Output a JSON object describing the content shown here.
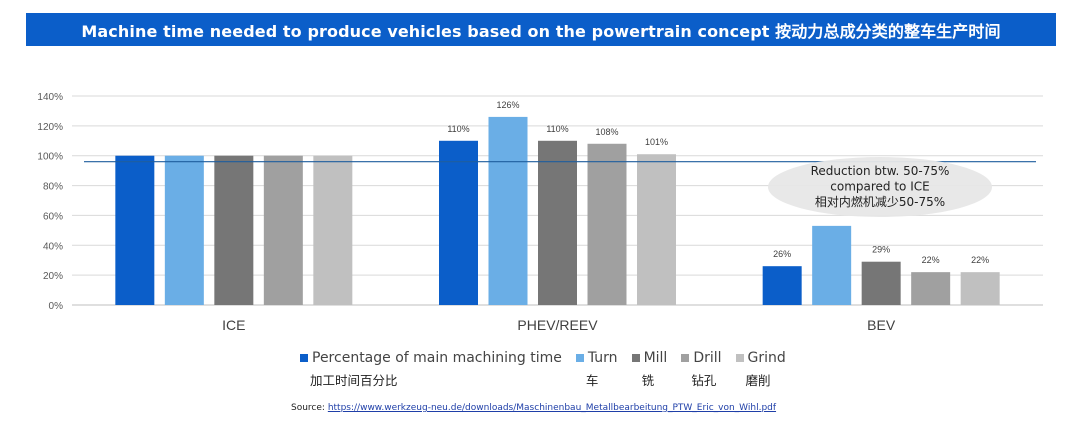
{
  "header": {
    "title": "Machine time needed to produce vehicles based on the powertrain concept 按动力总成分类的整车生产时间"
  },
  "chart_data": {
    "type": "bar",
    "categories": [
      "ICE",
      "PHEV/REEV",
      "BEV"
    ],
    "series": [
      {
        "name": "Percentage of main machining time",
        "name_cn": "加工时间百分比",
        "color": "#0b5ec9",
        "values": [
          100,
          110,
          26
        ],
        "labels": [
          "",
          "110%",
          "26%"
        ]
      },
      {
        "name": "Turn",
        "name_cn": "车",
        "color": "#6aaee6",
        "values": [
          100,
          126,
          53
        ],
        "labels": [
          "",
          "126%",
          ""
        ]
      },
      {
        "name": "Mill",
        "name_cn": "铣",
        "color": "#767676",
        "values": [
          100,
          110,
          29
        ],
        "labels": [
          "",
          "110%",
          "29%"
        ]
      },
      {
        "name": "Drill",
        "name_cn": "钻孔",
        "color": "#a0a0a0",
        "values": [
          100,
          108,
          22
        ],
        "labels": [
          "",
          "108%",
          "22%"
        ]
      },
      {
        "name": "Grind",
        "name_cn": "磨削",
        "color": "#c0c0c0",
        "values": [
          100,
          101,
          22
        ],
        "labels": [
          "",
          "101%",
          "22%"
        ]
      }
    ],
    "yticks": [
      "0%",
      "20%",
      "40%",
      "60%",
      "80%",
      "100%",
      "120%",
      "140%"
    ],
    "ylim": [
      0,
      140
    ],
    "reference_line": {
      "value": 96,
      "color": "#1f5e9e"
    },
    "annotation": {
      "lines": [
        "Reduction btw. 50-75%",
        "compared to ICE",
        "相对内燃机减少50-75%"
      ]
    },
    "grid": true,
    "legend_position": "bottom"
  },
  "source": {
    "label": "Source:",
    "url": "https://www.werkzeug-neu.de/downloads/Maschinenbau_Metallbearbeitung_PTW_Eric_von_Wihl.pdf"
  }
}
